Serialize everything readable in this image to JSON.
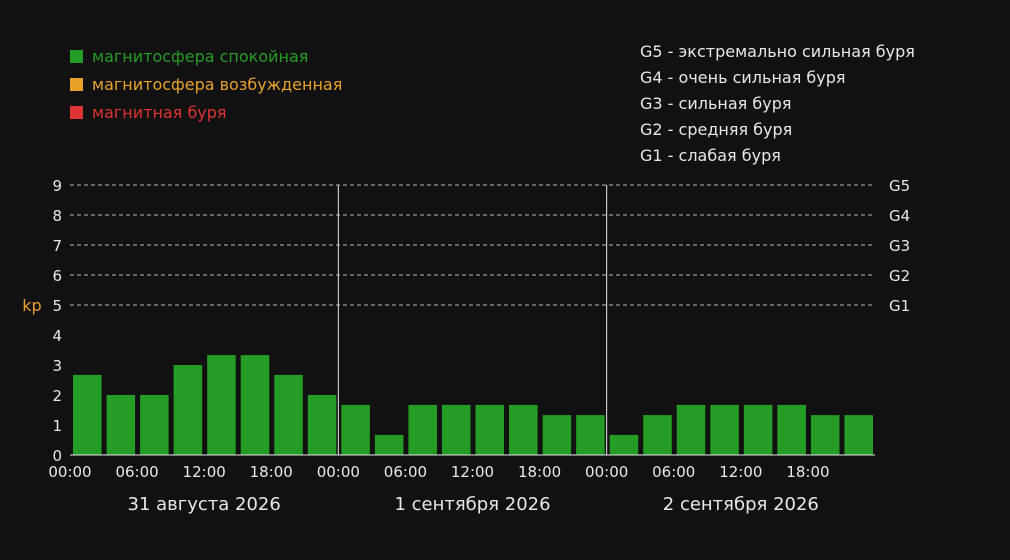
{
  "legend": [
    {
      "label": "магнитосфера спокойная",
      "color": "#259c25"
    },
    {
      "label": "магнитосфера возбужденная",
      "color": "#e8a22a"
    },
    {
      "label": "магнитная буря",
      "color": "#dd3333"
    }
  ],
  "storm_levels": [
    "G5 - экстремально сильная буря",
    "G4 - очень сильная буря",
    "G3 - сильная буря",
    "G2 - средняя буря",
    "G1 - слабая буря"
  ],
  "colors": {
    "background": "#111111",
    "bar": "#259c25",
    "ylabel": "#e8a22a",
    "text": "#e8e8e8"
  },
  "chart_data": {
    "type": "bar",
    "ylabel": "kp",
    "ylim": [
      0,
      9
    ],
    "yticks": [
      "0",
      "1",
      "2",
      "3",
      "4",
      "5",
      "6",
      "7",
      "8",
      "9"
    ],
    "right_axis": [
      {
        "value": 5,
        "label": "G1"
      },
      {
        "value": 6,
        "label": "G2"
      },
      {
        "value": 7,
        "label": "G3"
      },
      {
        "value": 8,
        "label": "G4"
      },
      {
        "value": 9,
        "label": "G5"
      }
    ],
    "grid": "dashed horizontal at 5-9",
    "days": [
      {
        "label": "31 августа 2026",
        "xticks": [
          "00:00",
          "06:00",
          "12:00",
          "18:00"
        ],
        "values": [
          2.67,
          2.0,
          2.0,
          3.0,
          3.33,
          3.33,
          2.67,
          2.0
        ]
      },
      {
        "label": "1 сентября 2026",
        "xticks": [
          "00:00",
          "06:00",
          "12:00",
          "18:00"
        ],
        "values": [
          1.67,
          0.67,
          1.67,
          1.67,
          1.67,
          1.67,
          1.33,
          1.33
        ]
      },
      {
        "label": "2 сентября 2026",
        "xticks": [
          "00:00",
          "06:00",
          "12:00",
          "18:00"
        ],
        "values": [
          0.67,
          1.33,
          1.67,
          1.67,
          1.67,
          1.67,
          1.33,
          1.33
        ]
      }
    ]
  }
}
